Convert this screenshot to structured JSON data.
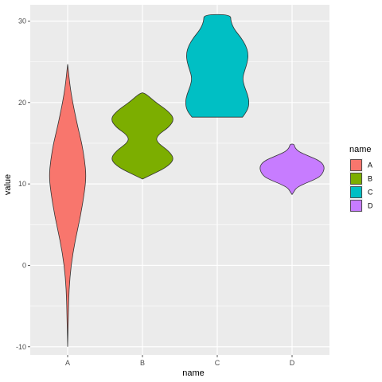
{
  "chart_data": {
    "type": "violin",
    "xlabel": "name",
    "ylabel": "value",
    "categories": [
      "A",
      "B",
      "C",
      "D"
    ],
    "ylim": [
      -11,
      32
    ],
    "yticks": [
      -10,
      0,
      10,
      20,
      30
    ],
    "colors": [
      "#F8766D",
      "#7CAE00",
      "#00BFC4",
      "#C77CFF"
    ],
    "legend": {
      "title": "name",
      "position": "right",
      "entries": [
        "A",
        "B",
        "C",
        "D"
      ]
    },
    "series": [
      {
        "category": "A",
        "min": -10,
        "max": 24.7,
        "profile": [
          [
            -10,
            0.0
          ],
          [
            -6,
            0.02
          ],
          [
            -3,
            0.04
          ],
          [
            0,
            0.1
          ],
          [
            3,
            0.22
          ],
          [
            6,
            0.38
          ],
          [
            9,
            0.5
          ],
          [
            11,
            0.55
          ],
          [
            13,
            0.5
          ],
          [
            15,
            0.42
          ],
          [
            17,
            0.3
          ],
          [
            20,
            0.15
          ],
          [
            22,
            0.07
          ],
          [
            24.7,
            0.0
          ]
        ]
      },
      {
        "category": "B",
        "min": 10.6,
        "max": 21.2,
        "profile": [
          [
            10.6,
            0.0
          ],
          [
            11,
            0.2
          ],
          [
            12,
            0.7
          ],
          [
            13,
            0.95
          ],
          [
            14,
            0.8
          ],
          [
            15.2,
            0.4
          ],
          [
            16,
            0.45
          ],
          [
            17,
            0.8
          ],
          [
            18,
            0.95
          ],
          [
            19,
            0.75
          ],
          [
            20,
            0.4
          ],
          [
            21,
            0.12
          ],
          [
            21.2,
            0.0
          ]
        ]
      },
      {
        "category": "C",
        "min": 18.2,
        "max": 30.8,
        "profile": [
          [
            18.2,
            0.75
          ],
          [
            19,
            0.9
          ],
          [
            20,
            0.95
          ],
          [
            21,
            0.9
          ],
          [
            22,
            0.8
          ],
          [
            23,
            0.75
          ],
          [
            24,
            0.82
          ],
          [
            25,
            0.9
          ],
          [
            26,
            0.92
          ],
          [
            27,
            0.85
          ],
          [
            28,
            0.7
          ],
          [
            29,
            0.5
          ],
          [
            30,
            0.4
          ],
          [
            30.8,
            0.4
          ]
        ]
      },
      {
        "category": "D",
        "min": 8.7,
        "max": 14.9,
        "profile": [
          [
            8.7,
            0.0
          ],
          [
            9,
            0.05
          ],
          [
            9.5,
            0.12
          ],
          [
            10,
            0.35
          ],
          [
            10.5,
            0.65
          ],
          [
            11,
            0.87
          ],
          [
            12,
            0.98
          ],
          [
            12.8,
            0.85
          ],
          [
            13.5,
            0.45
          ],
          [
            14,
            0.18
          ],
          [
            14.5,
            0.08
          ],
          [
            14.9,
            0.06
          ]
        ]
      }
    ]
  }
}
